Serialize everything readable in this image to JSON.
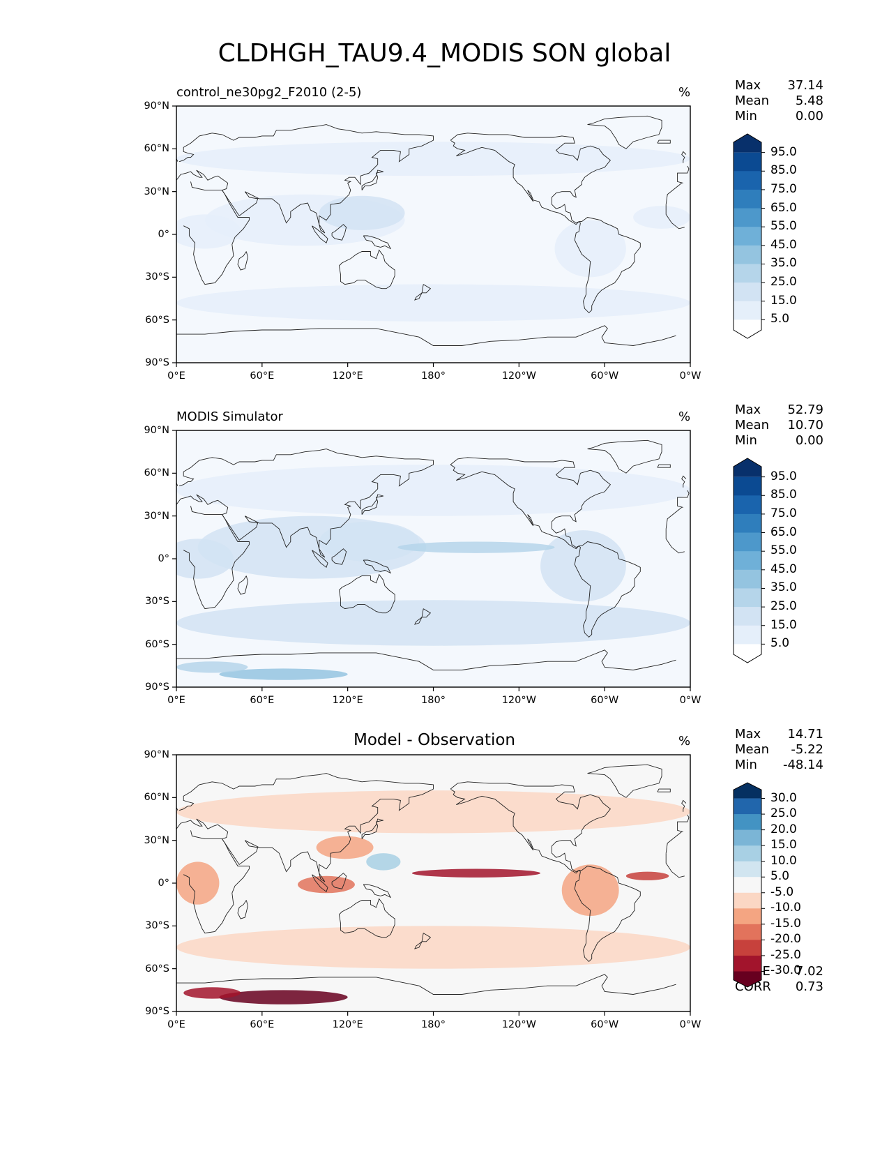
{
  "figure": {
    "title": "CLDHGH_TAU9.4_MODIS SON global"
  },
  "axes": {
    "lat_labels": [
      "90°N",
      "60°N",
      "30°N",
      "0°",
      "30°S",
      "60°S",
      "90°S"
    ],
    "lon_labels": [
      "0°E",
      "60°E",
      "120°E",
      "180°",
      "120°W",
      "60°W",
      "0°W"
    ]
  },
  "panels": [
    {
      "title": "control_ne30pg2_F2010 (2-5)",
      "title_style": "left",
      "unit": "%",
      "stats": [
        {
          "label": "Max",
          "value": "37.14"
        },
        {
          "label": "Mean",
          "value": "5.48"
        },
        {
          "label": "Min",
          "value": "0.00"
        }
      ],
      "colorbar": {
        "labels": [
          "95.0",
          "85.0",
          "75.0",
          "65.0",
          "55.0",
          "45.0",
          "35.0",
          "25.0",
          "15.0",
          "5.0"
        ],
        "colors": [
          "#08306b",
          "#0b4a92",
          "#1a64ad",
          "#2f7ebc",
          "#4d98cb",
          "#6fb0d8",
          "#94c4e0",
          "#b5d5ea",
          "#d2e3f3",
          "#e5effa",
          "#ffffff"
        ]
      }
    },
    {
      "title": "MODIS Simulator",
      "title_style": "left",
      "unit": "%",
      "stats": [
        {
          "label": "Max",
          "value": "52.79"
        },
        {
          "label": "Mean",
          "value": "10.70"
        },
        {
          "label": "Min",
          "value": "0.00"
        }
      ],
      "colorbar": {
        "labels": [
          "95.0",
          "85.0",
          "75.0",
          "65.0",
          "55.0",
          "45.0",
          "35.0",
          "25.0",
          "15.0",
          "5.0"
        ],
        "colors": [
          "#08306b",
          "#0b4a92",
          "#1a64ad",
          "#2f7ebc",
          "#4d98cb",
          "#6fb0d8",
          "#94c4e0",
          "#b5d5ea",
          "#d2e3f3",
          "#e5effa",
          "#ffffff"
        ]
      }
    },
    {
      "title": "Model - Observation",
      "title_style": "center",
      "unit": "%",
      "stats": [
        {
          "label": "Max",
          "value": "14.71"
        },
        {
          "label": "Mean",
          "value": "-5.22"
        },
        {
          "label": "Min",
          "value": "-48.14"
        }
      ],
      "extra_stats": [
        {
          "label": "RMSE",
          "value": "7.02"
        },
        {
          "label": "CORR",
          "value": "0.73"
        }
      ],
      "colorbar": {
        "labels": [
          "30.0",
          "25.0",
          "20.0",
          "15.0",
          "10.0",
          "5.0",
          "-5.0",
          "-10.0",
          "-15.0",
          "-20.0",
          "-25.0",
          "-30.0"
        ],
        "colors": [
          "#053061",
          "#2166ac",
          "#4393c3",
          "#7bb5d6",
          "#a8d0e4",
          "#d1e5f0",
          "#f7f7f7",
          "#fbd7c4",
          "#f4a582",
          "#e2735c",
          "#c7413c",
          "#a2142c",
          "#67001f"
        ]
      }
    }
  ]
}
